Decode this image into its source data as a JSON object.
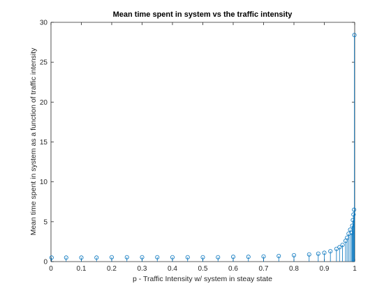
{
  "chart_data": {
    "type": "scatter",
    "style": "stem",
    "title": "Mean time spent in system vs the traffic intensity",
    "xlabel": "p - Traffic Intensity w/ system in steay state",
    "ylabel": "Mean time spent in system as a function of traffic intensity",
    "xlim": [
      0,
      1
    ],
    "ylim": [
      0,
      30
    ],
    "xticks": [
      "0",
      "0.1",
      "0.2",
      "0.3",
      "0.4",
      "0.5",
      "0.6",
      "0.7",
      "0.8",
      "0.9",
      "1"
    ],
    "yticks": [
      "0",
      "5",
      "10",
      "15",
      "20",
      "25",
      "30"
    ],
    "grid": false,
    "color": "#0072BD",
    "series": [
      {
        "x": [
          0.002,
          0.05,
          0.1,
          0.15,
          0.2,
          0.25,
          0.3,
          0.35,
          0.4,
          0.45,
          0.5,
          0.55,
          0.6,
          0.65,
          0.7,
          0.75,
          0.8,
          0.85,
          0.88,
          0.9,
          0.92,
          0.94,
          0.95,
          0.96,
          0.97,
          0.975,
          0.98,
          0.985,
          0.99,
          0.992,
          0.994,
          0.996,
          0.998,
          0.999
        ],
        "y": [
          0.5,
          0.5,
          0.5,
          0.5,
          0.55,
          0.55,
          0.55,
          0.55,
          0.55,
          0.55,
          0.55,
          0.55,
          0.6,
          0.6,
          0.65,
          0.7,
          0.8,
          0.9,
          1.0,
          1.1,
          1.3,
          1.6,
          1.8,
          2.1,
          2.6,
          3.0,
          3.5,
          4.0,
          3.6,
          4.5,
          5.2,
          5.9,
          6.5,
          28.4
        ]
      }
    ]
  }
}
